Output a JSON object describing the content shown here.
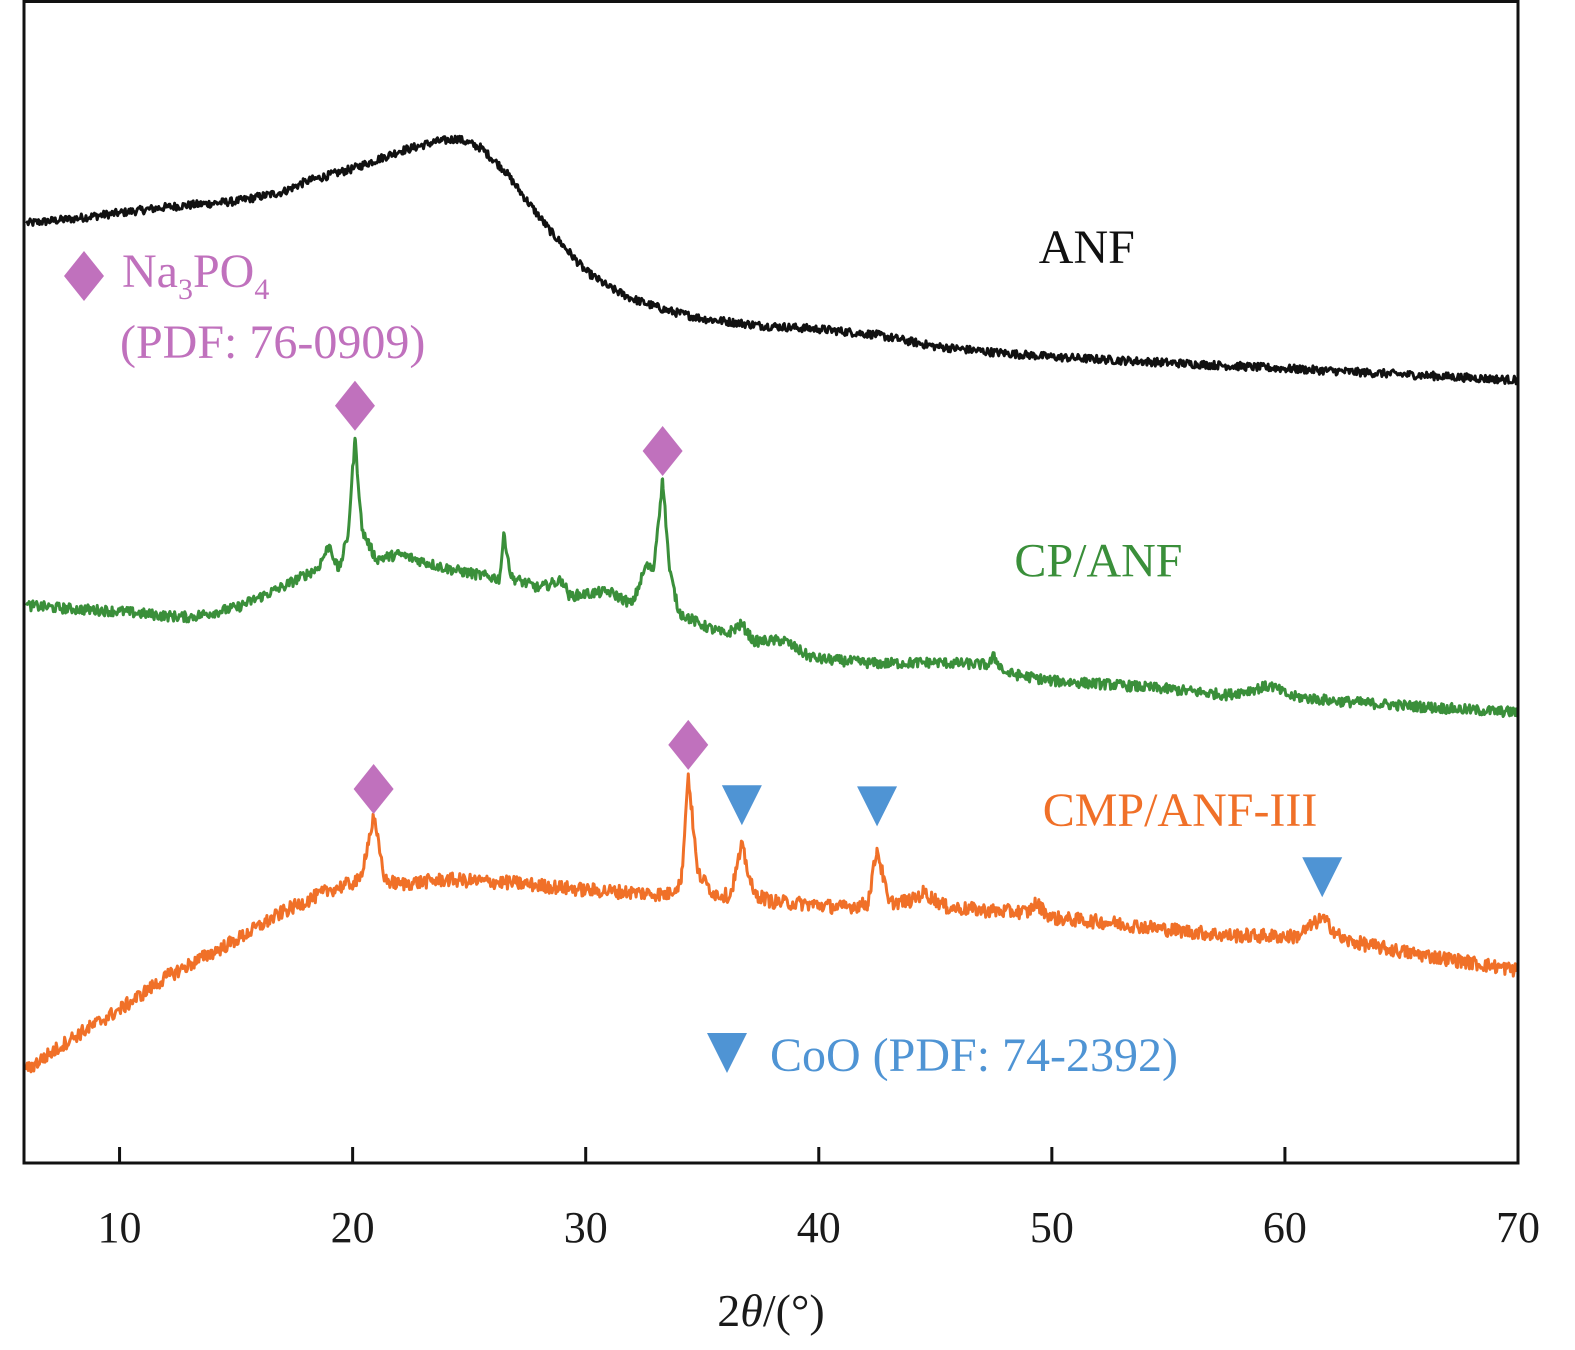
{
  "chart_data": {
    "type": "line",
    "title": "",
    "xlabel": "2θ/(°)",
    "xlabel_parts": {
      "prefix": "2",
      "italic": "θ",
      "suffix": "/(°)"
    },
    "ylabel": "",
    "xlim": [
      5.9,
      70
    ],
    "ylim": [
      0,
      100
    ],
    "x_ticks": [
      10,
      20,
      30,
      40,
      50,
      60,
      70
    ],
    "x_tick_labels": [
      "10",
      "20",
      "30",
      "40",
      "50",
      "60",
      "70"
    ],
    "y_ticks_visible": false,
    "grid": false,
    "series": [
      {
        "name": "ANF",
        "color": "#111111",
        "label_at": [
          51.5,
          77.5
        ],
        "points": [
          [
            6,
            80.9
          ],
          [
            8,
            81.3
          ],
          [
            10,
            81.8
          ],
          [
            12,
            82.3
          ],
          [
            15,
            82.8
          ],
          [
            17,
            83.6
          ],
          [
            18,
            84.5
          ],
          [
            20,
            85.6
          ],
          [
            22,
            87.1
          ],
          [
            23.5,
            87.9
          ],
          [
            24.5,
            88.2
          ],
          [
            25.5,
            87.4
          ],
          [
            26.5,
            85.5
          ],
          [
            27.5,
            82.8
          ],
          [
            28.5,
            80.2
          ],
          [
            30,
            76.8
          ],
          [
            31,
            75.4
          ],
          [
            32,
            74.4
          ],
          [
            33.5,
            73.4
          ],
          [
            35,
            72.7
          ],
          [
            37.5,
            72.1
          ],
          [
            40,
            71.8
          ],
          [
            42.5,
            71.3
          ],
          [
            45,
            70.3
          ],
          [
            47.5,
            69.8
          ],
          [
            50,
            69.4
          ],
          [
            55,
            68.9
          ],
          [
            60,
            68.4
          ],
          [
            65,
            67.9
          ],
          [
            70,
            67.4
          ]
        ],
        "noise": 0.35
      },
      {
        "name": "CP/ANF",
        "color": "#3a8f3a",
        "label_at": [
          52,
          50.5
        ],
        "points": [
          [
            6,
            48.0
          ],
          [
            8,
            47.7
          ],
          [
            10,
            47.5
          ],
          [
            12,
            47.1
          ],
          [
            13,
            47.0
          ],
          [
            15,
            47.8
          ],
          [
            17,
            49.6
          ],
          [
            18.5,
            51.2
          ],
          [
            19,
            53.2
          ],
          [
            19.4,
            51.0
          ],
          [
            19.8,
            54.0
          ],
          [
            20.1,
            62.4
          ],
          [
            20.4,
            54.5
          ],
          [
            21,
            52.0
          ],
          [
            22,
            52.4
          ],
          [
            24,
            51.2
          ],
          [
            25.5,
            50.6
          ],
          [
            26.3,
            50.3
          ],
          [
            26.5,
            54.2
          ],
          [
            26.8,
            50.4
          ],
          [
            28,
            49.5
          ],
          [
            29,
            50.2
          ],
          [
            29.3,
            48.8
          ],
          [
            30,
            49.0
          ],
          [
            31,
            49.2
          ],
          [
            32,
            48.1
          ],
          [
            32.6,
            51.5
          ],
          [
            32.9,
            51.0
          ],
          [
            33.3,
            58.9
          ],
          [
            33.6,
            51.0
          ],
          [
            34,
            47.4
          ],
          [
            35,
            46.3
          ],
          [
            36,
            45.5
          ],
          [
            36.7,
            46.4
          ],
          [
            37.2,
            44.9
          ],
          [
            38.5,
            45.0
          ],
          [
            39.5,
            43.7
          ],
          [
            40,
            43.4
          ],
          [
            42.5,
            43.0
          ],
          [
            45,
            43.1
          ],
          [
            47.3,
            42.9
          ],
          [
            47.5,
            43.6
          ],
          [
            48,
            42.2
          ],
          [
            50,
            41.5
          ],
          [
            52.5,
            41.2
          ],
          [
            55,
            40.8
          ],
          [
            57.5,
            40.3
          ],
          [
            59.4,
            41.1
          ],
          [
            60.2,
            40.2
          ],
          [
            62,
            39.8
          ],
          [
            65,
            39.4
          ],
          [
            68,
            39.0
          ],
          [
            70,
            38.8
          ]
        ],
        "noise": 0.45
      },
      {
        "name": "CMP/ANF-III",
        "color": "#f07028",
        "label_at": [
          55.5,
          29.0
        ],
        "points": [
          [
            6,
            8.0
          ],
          [
            8,
            10.8
          ],
          [
            10,
            13.2
          ],
          [
            12,
            16.0
          ],
          [
            15,
            19.2
          ],
          [
            17,
            21.6
          ],
          [
            19,
            23.5
          ],
          [
            20.3,
            24.3
          ],
          [
            20.9,
            29.7
          ],
          [
            21.4,
            24.3
          ],
          [
            22,
            24.0
          ],
          [
            24,
            24.4
          ],
          [
            25,
            24.3
          ],
          [
            27,
            24.1
          ],
          [
            30,
            23.5
          ],
          [
            32,
            23.3
          ],
          [
            33.5,
            23.1
          ],
          [
            34.1,
            24.2
          ],
          [
            34.4,
            33.5
          ],
          [
            34.8,
            25.0
          ],
          [
            35.5,
            23.2
          ],
          [
            36.2,
            23.0
          ],
          [
            36.7,
            27.3
          ],
          [
            37.2,
            23.2
          ],
          [
            38,
            22.5
          ],
          [
            39.5,
            22.3
          ],
          [
            41,
            22.0
          ],
          [
            42.1,
            22.3
          ],
          [
            42.5,
            27.1
          ],
          [
            43,
            22.4
          ],
          [
            44,
            22.6
          ],
          [
            44.5,
            23.3
          ],
          [
            45.5,
            22.0
          ],
          [
            47.5,
            21.7
          ],
          [
            49,
            21.6
          ],
          [
            49.3,
            22.4
          ],
          [
            50,
            21.1
          ],
          [
            52.5,
            20.7
          ],
          [
            55,
            20.1
          ],
          [
            57.5,
            19.6
          ],
          [
            60.5,
            19.5
          ],
          [
            61.6,
            21.1
          ],
          [
            62.5,
            19.2
          ],
          [
            65,
            18.2
          ],
          [
            67.5,
            17.4
          ],
          [
            70,
            16.6
          ]
        ],
        "noise": 0.6
      }
    ],
    "markers": [
      {
        "phase": "Na3PO4",
        "shape": "diamond",
        "color": "#c071bd",
        "x": 20.1,
        "y": 65.2
      },
      {
        "phase": "Na3PO4",
        "shape": "diamond",
        "color": "#c071bd",
        "x": 33.3,
        "y": 61.3
      },
      {
        "phase": "Na3PO4",
        "shape": "diamond",
        "color": "#c071bd",
        "x": 20.9,
        "y": 32.2
      },
      {
        "phase": "Na3PO4",
        "shape": "diamond",
        "color": "#c071bd",
        "x": 34.4,
        "y": 36.0
      },
      {
        "phase": "CoO",
        "shape": "triangle-down",
        "color": "#4f94d4",
        "x": 36.7,
        "y": 30.8
      },
      {
        "phase": "CoO",
        "shape": "triangle-down",
        "color": "#4f94d4",
        "x": 42.5,
        "y": 30.7
      },
      {
        "phase": "CoO",
        "shape": "triangle-down",
        "color": "#4f94d4",
        "x": 61.6,
        "y": 24.6
      }
    ],
    "legend": [
      {
        "phase": "Na3PO4",
        "shape": "diamond",
        "color": "#c071bd",
        "formula_parts": [
          "Na",
          "3",
          "PO",
          "4"
        ],
        "line2": "(PDF: 76-0909)",
        "placement": "upper-left"
      },
      {
        "phase": "CoO",
        "shape": "triangle-down",
        "color": "#4f94d4",
        "text": "CoO (PDF: 74-2392)",
        "placement": "bottom-center"
      }
    ]
  }
}
